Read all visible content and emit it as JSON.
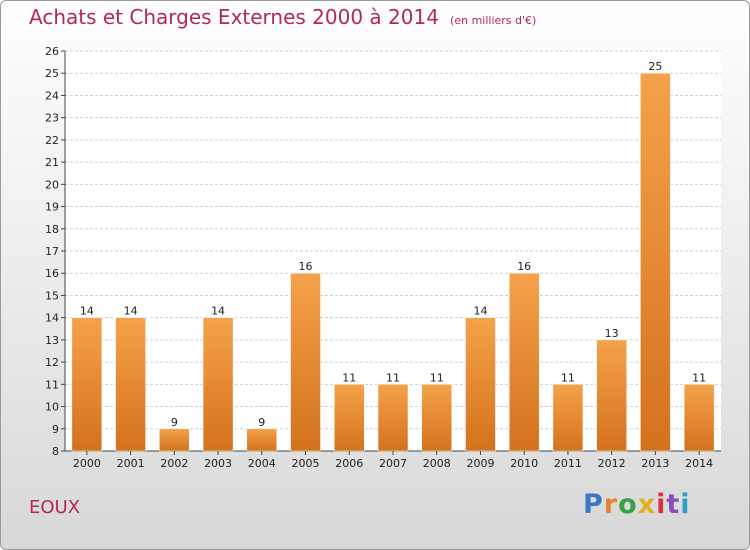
{
  "title": "Achats et Charges Externes 2000 à 2014",
  "unit_note": "(en milliers d'€)",
  "commune": "EOUX",
  "logo": {
    "text": "Proxiti",
    "colors": [
      "#3a78c8",
      "#e8842c",
      "#3aa044",
      "#e0b020",
      "#d8343c",
      "#8a4cc0",
      "#28a0c8"
    ]
  },
  "colors": {
    "title": "#b3285a",
    "bar_top": "#f5a24a",
    "bar_bottom": "#d4721c"
  },
  "chart_data": {
    "type": "bar",
    "categories": [
      "2000",
      "2001",
      "2002",
      "2003",
      "2004",
      "2005",
      "2006",
      "2007",
      "2008",
      "2009",
      "2010",
      "2011",
      "2012",
      "2013",
      "2014"
    ],
    "values": [
      14,
      14,
      9,
      14,
      9,
      16,
      11,
      11,
      11,
      14,
      16,
      11,
      13,
      25,
      11
    ],
    "ylim": [
      8,
      26
    ],
    "yticks": [
      8,
      9,
      10,
      11,
      12,
      13,
      14,
      15,
      16,
      17,
      18,
      19,
      20,
      21,
      22,
      23,
      24,
      25,
      26
    ],
    "grid": true,
    "title": "Achats et Charges Externes 2000 à 2014",
    "xlabel": "",
    "ylabel": ""
  }
}
